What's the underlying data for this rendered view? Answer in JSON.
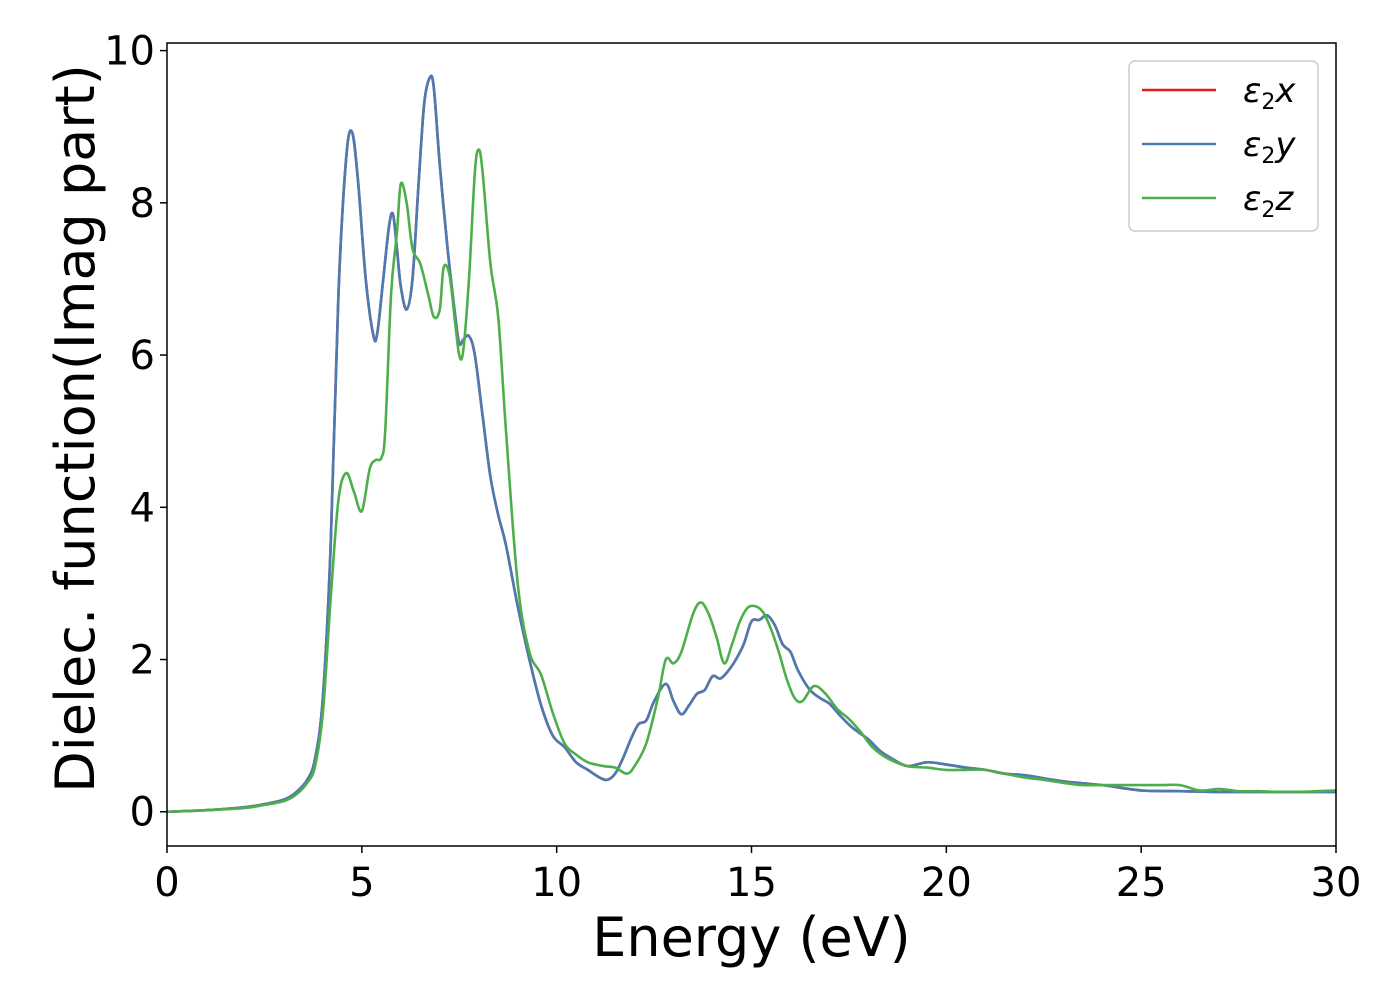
{
  "chart_data": {
    "type": "line",
    "xlabel": "Energy (eV)",
    "ylabel": "Dielec. function(Imag part)",
    "xlim": [
      0,
      30
    ],
    "ylim": [
      -0.45,
      10.1
    ],
    "xticks": [
      0,
      5,
      10,
      15,
      20,
      25,
      30
    ],
    "yticks": [
      0,
      2,
      4,
      6,
      8,
      10
    ],
    "grid": false,
    "legend_position": "top-right",
    "colors": {
      "x": "#e41a1c",
      "y": "#4a7cb3",
      "z": "#4daf4a"
    },
    "legend": [
      {
        "key": "x",
        "base": "ε",
        "sub": "2",
        "suffix": "x"
      },
      {
        "key": "y",
        "base": "ε",
        "sub": "2",
        "suffix": "y"
      },
      {
        "key": "z",
        "base": "ε",
        "sub": "2",
        "suffix": "z"
      }
    ],
    "series": [
      {
        "key": "x",
        "x": [
          0,
          1,
          2,
          2.5,
          3,
          3.3,
          3.6,
          3.8,
          4,
          4.2,
          4.4,
          4.6,
          4.75,
          4.9,
          5.1,
          5.3,
          5.4,
          5.55,
          5.7,
          5.8,
          5.9,
          6,
          6.15,
          6.3,
          6.45,
          6.6,
          6.75,
          6.85,
          7,
          7.2,
          7.4,
          7.5,
          7.6,
          7.75,
          7.9,
          8.1,
          8.3,
          8.5,
          8.7,
          9,
          9.3,
          9.6,
          9.9,
          10.2,
          10.5,
          10.8,
          11.1,
          11.3,
          11.5,
          11.7,
          11.9,
          12.1,
          12.3,
          12.5,
          12.8,
          13,
          13.2,
          13.4,
          13.6,
          13.8,
          14,
          14.2,
          14.4,
          14.6,
          14.8,
          15,
          15.2,
          15.4,
          15.6,
          15.8,
          16,
          16.2,
          16.5,
          16.8,
          17,
          17.3,
          17.6,
          18,
          18.3,
          18.6,
          19,
          19.5,
          20,
          20.5,
          21,
          21.5,
          22,
          23,
          24,
          25,
          26,
          27,
          28,
          29,
          30
        ],
        "values": [
          0,
          0.02,
          0.06,
          0.1,
          0.16,
          0.25,
          0.42,
          0.7,
          1.5,
          3.5,
          6.8,
          8.6,
          8.93,
          8.3,
          7.0,
          6.25,
          6.3,
          7.0,
          7.7,
          7.85,
          7.4,
          6.9,
          6.6,
          7.0,
          8.2,
          9.3,
          9.65,
          9.5,
          8.5,
          7.4,
          6.5,
          6.15,
          6.2,
          6.25,
          6.0,
          5.2,
          4.4,
          3.9,
          3.5,
          2.7,
          2.0,
          1.4,
          1.0,
          0.85,
          0.65,
          0.55,
          0.45,
          0.42,
          0.5,
          0.7,
          0.95,
          1.15,
          1.2,
          1.45,
          1.68,
          1.45,
          1.28,
          1.4,
          1.55,
          1.6,
          1.78,
          1.75,
          1.85,
          2.0,
          2.2,
          2.5,
          2.52,
          2.58,
          2.45,
          2.2,
          2.1,
          1.85,
          1.6,
          1.48,
          1.42,
          1.25,
          1.1,
          0.95,
          0.8,
          0.7,
          0.6,
          0.65,
          0.62,
          0.58,
          0.55,
          0.5,
          0.48,
          0.4,
          0.35,
          0.28,
          0.27,
          0.26,
          0.26,
          0.26,
          0.26
        ]
      },
      {
        "key": "y",
        "x": [
          0,
          1,
          2,
          2.5,
          3,
          3.3,
          3.6,
          3.8,
          4,
          4.2,
          4.4,
          4.6,
          4.75,
          4.9,
          5.1,
          5.3,
          5.4,
          5.55,
          5.7,
          5.8,
          5.9,
          6,
          6.15,
          6.3,
          6.45,
          6.6,
          6.75,
          6.85,
          7,
          7.2,
          7.4,
          7.5,
          7.6,
          7.75,
          7.9,
          8.1,
          8.3,
          8.5,
          8.7,
          9,
          9.3,
          9.6,
          9.9,
          10.2,
          10.5,
          10.8,
          11.1,
          11.3,
          11.5,
          11.7,
          11.9,
          12.1,
          12.3,
          12.5,
          12.8,
          13,
          13.2,
          13.4,
          13.6,
          13.8,
          14,
          14.2,
          14.4,
          14.6,
          14.8,
          15,
          15.2,
          15.4,
          15.6,
          15.8,
          16,
          16.2,
          16.5,
          16.8,
          17,
          17.3,
          17.6,
          18,
          18.3,
          18.6,
          19,
          19.5,
          20,
          20.5,
          21,
          21.5,
          22,
          23,
          24,
          25,
          26,
          27,
          28,
          29,
          30
        ],
        "values": [
          0,
          0.02,
          0.06,
          0.1,
          0.16,
          0.25,
          0.42,
          0.7,
          1.5,
          3.5,
          6.8,
          8.6,
          8.93,
          8.3,
          7.0,
          6.25,
          6.3,
          7.0,
          7.7,
          7.85,
          7.4,
          6.9,
          6.6,
          7.0,
          8.2,
          9.3,
          9.65,
          9.5,
          8.5,
          7.4,
          6.5,
          6.15,
          6.2,
          6.25,
          6.0,
          5.2,
          4.4,
          3.9,
          3.5,
          2.7,
          2.0,
          1.4,
          1.0,
          0.85,
          0.65,
          0.55,
          0.45,
          0.42,
          0.5,
          0.7,
          0.95,
          1.15,
          1.2,
          1.45,
          1.68,
          1.45,
          1.28,
          1.4,
          1.55,
          1.6,
          1.78,
          1.75,
          1.85,
          2.0,
          2.2,
          2.5,
          2.52,
          2.58,
          2.45,
          2.2,
          2.1,
          1.85,
          1.6,
          1.48,
          1.42,
          1.25,
          1.1,
          0.95,
          0.8,
          0.7,
          0.6,
          0.65,
          0.62,
          0.58,
          0.55,
          0.5,
          0.48,
          0.4,
          0.35,
          0.28,
          0.27,
          0.26,
          0.26,
          0.26,
          0.26
        ]
      },
      {
        "key": "z",
        "x": [
          0,
          1,
          2,
          2.5,
          3,
          3.3,
          3.6,
          3.8,
          4,
          4.2,
          4.4,
          4.6,
          4.8,
          5.0,
          5.2,
          5.35,
          5.5,
          5.6,
          5.75,
          5.9,
          6.0,
          6.15,
          6.3,
          6.5,
          6.7,
          6.85,
          7.0,
          7.1,
          7.25,
          7.4,
          7.5,
          7.6,
          7.75,
          7.9,
          8.0,
          8.1,
          8.3,
          8.5,
          8.7,
          9,
          9.3,
          9.6,
          9.9,
          10.2,
          10.5,
          10.8,
          11.2,
          11.5,
          11.8,
          12.0,
          12.3,
          12.6,
          12.8,
          13,
          13.2,
          13.5,
          13.7,
          13.9,
          14.1,
          14.3,
          14.5,
          14.7,
          14.9,
          15.1,
          15.3,
          15.5,
          15.7,
          15.9,
          16.1,
          16.3,
          16.6,
          16.9,
          17.2,
          17.5,
          17.8,
          18.1,
          18.5,
          19,
          19.5,
          20,
          20.5,
          21,
          21.5,
          22,
          22.5,
          23,
          23.5,
          24,
          25,
          25.5,
          26,
          26.5,
          27,
          27.5,
          28,
          28.5,
          29,
          29.5,
          30
        ],
        "values": [
          0,
          0.02,
          0.05,
          0.09,
          0.14,
          0.22,
          0.38,
          0.6,
          1.3,
          2.8,
          4.1,
          4.45,
          4.2,
          3.95,
          4.5,
          4.62,
          4.65,
          5.0,
          6.8,
          7.6,
          8.25,
          8.0,
          7.4,
          7.2,
          6.8,
          6.5,
          6.6,
          7.15,
          7.05,
          6.4,
          6.0,
          6.05,
          7.0,
          8.4,
          8.7,
          8.4,
          7.2,
          6.5,
          5.0,
          3.0,
          2.1,
          1.8,
          1.3,
          0.9,
          0.75,
          0.65,
          0.6,
          0.58,
          0.5,
          0.6,
          0.9,
          1.5,
          2.0,
          1.95,
          2.1,
          2.6,
          2.75,
          2.6,
          2.3,
          1.95,
          2.2,
          2.5,
          2.68,
          2.7,
          2.62,
          2.4,
          2.1,
          1.75,
          1.5,
          1.45,
          1.65,
          1.55,
          1.35,
          1.22,
          1.05,
          0.85,
          0.7,
          0.6,
          0.58,
          0.55,
          0.55,
          0.55,
          0.5,
          0.45,
          0.42,
          0.38,
          0.35,
          0.35,
          0.35,
          0.35,
          0.35,
          0.28,
          0.3,
          0.27,
          0.27,
          0.26,
          0.26,
          0.27,
          0.28
        ]
      }
    ]
  }
}
